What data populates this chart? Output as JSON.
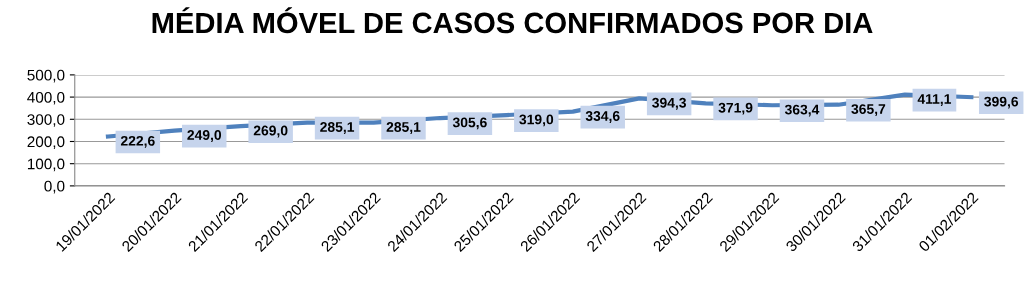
{
  "chart_data": {
    "type": "line",
    "title": "MÉDIA MÓVEL DE CASOS CONFIRMADOS POR DIA",
    "categories": [
      "19/01/2022",
      "20/01/2022",
      "21/01/2022",
      "22/01/2022",
      "23/01/2022",
      "24/01/2022",
      "25/01/2022",
      "26/01/2022",
      "27/01/2022",
      "28/01/2022",
      "29/01/2022",
      "30/01/2022",
      "31/01/2022",
      "01/02/2022"
    ],
    "series": [
      {
        "color": "#4f81bd",
        "values": [
          222.6,
          249.0,
          269.0,
          285.1,
          285.1,
          305.6,
          319.0,
          334.6,
          394.3,
          371.9,
          363.4,
          365.7,
          411.1,
          399.6
        ],
        "value_labels": [
          "222,6",
          "249,0",
          "269,0",
          "285,1",
          "285,1",
          "305,6",
          "319,0",
          "334,6",
          "394,3",
          "371,9",
          "363,4",
          "365,7",
          "411,1",
          "399,6"
        ]
      }
    ],
    "ylim": [
      0,
      500
    ],
    "yticks": [
      {
        "value": 0,
        "label": "0,0"
      },
      {
        "value": 100,
        "label": "100,0"
      },
      {
        "value": 200,
        "label": "200,0"
      },
      {
        "value": 300,
        "label": "300,0"
      },
      {
        "value": 400,
        "label": "400,0"
      },
      {
        "value": 500,
        "label": "500,0"
      }
    ],
    "grid": "y",
    "legend": false,
    "line_style": "solid"
  }
}
